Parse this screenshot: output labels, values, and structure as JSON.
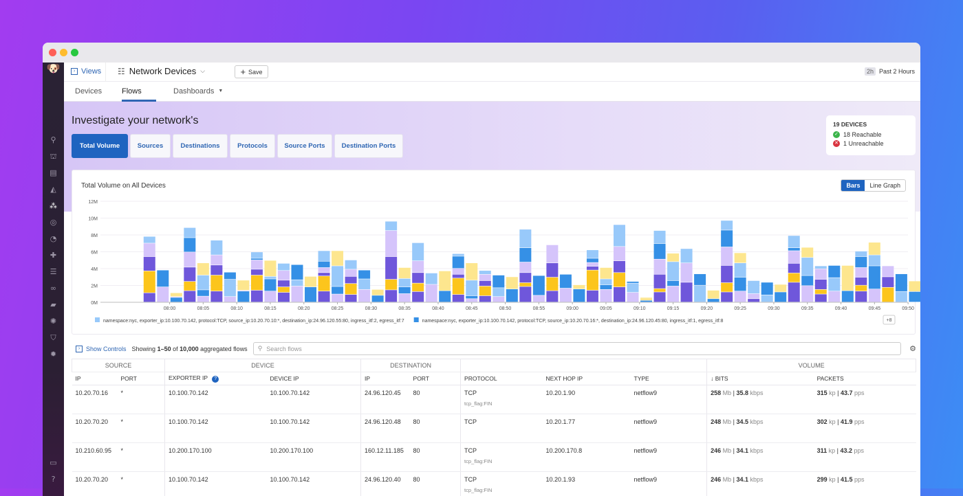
{
  "header": {
    "views_label": "Views",
    "title": "Network Devices",
    "save_label": "Save",
    "time_badge": "2h",
    "time_label": "Past 2 Hours"
  },
  "tabs": [
    {
      "label": "Devices"
    },
    {
      "label": "Flows",
      "active": true
    },
    {
      "label": "Dashboards"
    }
  ],
  "banner": {
    "title": "Investigate your network's"
  },
  "quick_tabs": [
    {
      "label": "Total Volume",
      "active": true
    },
    {
      "label": "Sources"
    },
    {
      "label": "Destinations"
    },
    {
      "label": "Protocols"
    },
    {
      "label": "Source Ports"
    },
    {
      "label": "Destination Ports"
    }
  ],
  "devices": {
    "title": "19 DEVICES",
    "reachable": "18 Reachable",
    "unreachable": "1 Unreachable"
  },
  "sidebar_icons": [
    "search-icon",
    "binoculars-icon",
    "dashboard-icon",
    "chart-icon",
    "network-icon",
    "radar-icon",
    "gauge-icon",
    "puzzle-icon",
    "filter-icon",
    "link-icon",
    "book-icon",
    "debug-icon",
    "shield-icon",
    "gear-bug-icon",
    "chat-icon",
    "help-icon"
  ],
  "chart_toggle": {
    "bars": "Bars",
    "line": "Line Graph"
  },
  "chart_data": {
    "type": "bar",
    "stacked": true,
    "title": "Total Volume on All Devices",
    "ylim": [
      0,
      12
    ],
    "yticks": [
      "0M",
      "2M",
      "4M",
      "6M",
      "8M",
      "10M",
      "12M"
    ],
    "xticks": [
      "08:00",
      "08:05",
      "08:10",
      "08:15",
      "08:20",
      "08:25",
      "08:30",
      "08:35",
      "08:40",
      "08:45",
      "08:50",
      "08:55",
      "09:00",
      "09:05",
      "09:10",
      "09:15",
      "09:20",
      "09:25",
      "09:30",
      "09:35",
      "09:40",
      "09:45",
      "09:50",
      "09:55"
    ],
    "x_start": "07:57",
    "x_step_minutes": 2,
    "grid": true,
    "legend": "bottom",
    "colors": {
      "P": "#6f57db",
      "L": "#d5c4fb",
      "Y": "#fcc51c",
      "PY": "#fde68e",
      "B": "#3590e6",
      "LB": "#98c9fa"
    },
    "legend_entries": [
      {
        "color": "#98c9fa",
        "label": "namespace:nyc, exporter_ip:10.100.70.142, protocol:TCP, source_ip:10.20.70.10:*, destination_ip:24.96.120.55:80, ingress_itf:2, egress_itf:7"
      },
      {
        "color": "#3590e6",
        "label": "namespace:nyc, exporter_ip:10.100.70.142, protocol:TCP, source_ip:10.20.70.16:*, destination_ip:24.96.120.45:80, ingress_itf:1, egress_itf:8"
      }
    ],
    "legend_more": "+8",
    "bars": [
      [
        [
          "P",
          1.1
        ],
        [
          "Y",
          2.6
        ],
        [
          "P",
          1.7
        ],
        [
          "L",
          1.6
        ],
        [
          "LB",
          0.8
        ]
      ],
      [
        [
          "L",
          1.8
        ],
        [
          "B",
          2.0
        ]
      ],
      [
        [
          "B",
          0.55
        ],
        [
          "L",
          0.1
        ],
        [
          "PY",
          0.45
        ]
      ],
      [
        [
          "P",
          1.35
        ],
        [
          "Y",
          1.1
        ],
        [
          "P",
          1.7
        ],
        [
          "L",
          1.8
        ],
        [
          "B",
          1.7
        ],
        [
          "LB",
          1.2
        ]
      ],
      [
        [
          "L",
          0.7
        ],
        [
          "B",
          0.75
        ],
        [
          "LB",
          1.75
        ],
        [
          "PY",
          1.45
        ]
      ],
      [
        [
          "P",
          1.3
        ],
        [
          "Y",
          1.9
        ],
        [
          "P",
          1.2
        ],
        [
          "L",
          1.2
        ],
        [
          "LB",
          1.75
        ]
      ],
      [
        [
          "L",
          0.65
        ],
        [
          "LB",
          2.05
        ],
        [
          "B",
          0.85
        ]
      ],
      [
        [
          "B",
          1.3
        ],
        [
          "L",
          0.1
        ],
        [
          "PY",
          1.2
        ]
      ],
      [
        [
          "P",
          1.4
        ],
        [
          "Y",
          1.8
        ],
        [
          "P",
          0.7
        ],
        [
          "L",
          1.1
        ],
        [
          "B",
          0.2
        ],
        [
          "LB",
          0.75
        ]
      ],
      [
        [
          "L",
          1.3
        ],
        [
          "B",
          1.45
        ],
        [
          "LB",
          0.3
        ],
        [
          "PY",
          1.9
        ]
      ],
      [
        [
          "P",
          1.15
        ],
        [
          "Y",
          0.65
        ],
        [
          "P",
          0.8
        ],
        [
          "L",
          1.15
        ],
        [
          "LB",
          0.85
        ]
      ],
      [
        [
          "L",
          1.9
        ],
        [
          "LB",
          0.75
        ],
        [
          "B",
          1.8
        ]
      ],
      [
        [
          "B",
          1.8
        ],
        [
          "PY",
          1.25
        ]
      ],
      [
        [
          "P",
          1.3
        ],
        [
          "Y",
          1.8
        ],
        [
          "P",
          0.4
        ],
        [
          "L",
          0.6
        ],
        [
          "B",
          0.75
        ],
        [
          "LB",
          1.25
        ]
      ],
      [
        [
          "L",
          0.95
        ],
        [
          "B",
          0.9
        ],
        [
          "LB",
          2.45
        ],
        [
          "PY",
          1.8
        ]
      ],
      [
        [
          "P",
          0.9
        ],
        [
          "Y",
          1.3
        ],
        [
          "P",
          0.85
        ],
        [
          "L",
          0.85
        ],
        [
          "LB",
          1.1
        ]
      ],
      [
        [
          "L",
          1.5
        ],
        [
          "LB",
          1.25
        ],
        [
          "B",
          1.05
        ]
      ],
      [
        [
          "B",
          0.8
        ],
        [
          "PY",
          0.7
        ]
      ],
      [
        [
          "P",
          1.45
        ],
        [
          "Y",
          1.25
        ],
        [
          "P",
          2.7
        ],
        [
          "L",
          3.1
        ],
        [
          "LB",
          1.1
        ]
      ],
      [
        [
          "L",
          1.0
        ],
        [
          "B",
          0.8
        ],
        [
          "LB",
          1.0
        ],
        [
          "PY",
          1.3
        ]
      ],
      [
        [
          "P",
          1.25
        ],
        [
          "Y",
          1.0
        ],
        [
          "P",
          1.25
        ],
        [
          "L",
          1.4
        ],
        [
          "LB",
          2.15
        ]
      ],
      [
        [
          "L",
          2.1
        ],
        [
          "LB",
          1.35
        ]
      ],
      [
        [
          "B",
          1.35
        ],
        [
          "PY",
          2.35
        ]
      ],
      [
        [
          "P",
          0.9
        ],
        [
          "Y",
          1.95
        ],
        [
          "P",
          0.45
        ],
        [
          "L",
          0.7
        ],
        [
          "B",
          1.45
        ],
        [
          "LB",
          0.3
        ]
      ],
      [
        [
          "L",
          0.4
        ],
        [
          "B",
          0.35
        ],
        [
          "LB",
          1.85
        ],
        [
          "PY",
          2.05
        ]
      ],
      [
        [
          "P",
          0.75
        ],
        [
          "Y",
          1.15
        ],
        [
          "P",
          0.65
        ],
        [
          "L",
          0.75
        ],
        [
          "LB",
          0.45
        ]
      ],
      [
        [
          "L",
          0.65
        ],
        [
          "LB",
          1.05
        ],
        [
          "B",
          1.5
        ]
      ],
      [
        [
          "B",
          1.55
        ],
        [
          "PY",
          1.45
        ]
      ],
      [
        [
          "P",
          1.85
        ],
        [
          "Y",
          0.45
        ],
        [
          "P",
          1.2
        ],
        [
          "L",
          1.25
        ],
        [
          "B",
          1.7
        ],
        [
          "LB",
          2.2
        ]
      ],
      [
        [
          "L",
          0.8
        ],
        [
          "B",
          2.35
        ]
      ],
      [
        [
          "P",
          1.35
        ],
        [
          "Y",
          1.6
        ],
        [
          "P",
          1.7
        ],
        [
          "L",
          2.15
        ]
      ],
      [
        [
          "L",
          1.65
        ],
        [
          "B",
          1.65
        ]
      ],
      [
        [
          "B",
          1.55
        ],
        [
          "PY",
          0.5
        ]
      ],
      [
        [
          "P",
          1.4
        ],
        [
          "Y",
          2.4
        ],
        [
          "P",
          0.45
        ],
        [
          "L",
          0.45
        ],
        [
          "B",
          0.5
        ],
        [
          "LB",
          1.0
        ]
      ],
      [
        [
          "L",
          1.5
        ],
        [
          "B",
          0.55
        ],
        [
          "LB",
          0.7
        ],
        [
          "PY",
          1.35
        ]
      ],
      [
        [
          "P",
          1.8
        ],
        [
          "Y",
          1.7
        ],
        [
          "P",
          1.4
        ],
        [
          "L",
          1.7
        ],
        [
          "LB",
          2.6
        ]
      ],
      [
        [
          "L",
          1.15
        ],
        [
          "LB",
          1.1
        ],
        [
          "B",
          0.2
        ]
      ],
      [
        [
          "B",
          0.2
        ],
        [
          "Y",
          0.1
        ],
        [
          "PY",
          0.25
        ]
      ],
      [
        [
          "P",
          1.2
        ],
        [
          "Y",
          0.4
        ],
        [
          "P",
          1.7
        ],
        [
          "L",
          1.8
        ],
        [
          "B",
          1.85
        ],
        [
          "LB",
          1.55
        ]
      ],
      [
        [
          "L",
          1.9
        ],
        [
          "B",
          0.65
        ],
        [
          "LB",
          2.25
        ],
        [
          "PY",
          1.0
        ]
      ],
      [
        [
          "P",
          2.35
        ],
        [
          "L",
          2.3
        ],
        [
          "LB",
          1.7
        ]
      ],
      [
        [
          "LB",
          2.0
        ],
        [
          "B",
          1.35
        ]
      ],
      [
        [
          "B",
          0.4
        ],
        [
          "PY",
          1.0
        ]
      ],
      [
        [
          "P",
          1.2
        ],
        [
          "Y",
          1.1
        ],
        [
          "P",
          2.05
        ],
        [
          "L",
          2.2
        ],
        [
          "B",
          2.0
        ],
        [
          "LB",
          1.15
        ]
      ],
      [
        [
          "L",
          1.3
        ],
        [
          "B",
          1.65
        ],
        [
          "LB",
          1.7
        ],
        [
          "PY",
          1.2
        ]
      ],
      [
        [
          "P",
          0.4
        ],
        [
          "L",
          0.6
        ],
        [
          "LB",
          1.55
        ]
      ],
      [
        [
          "LB",
          0.85
        ],
        [
          "B",
          1.5
        ]
      ],
      [
        [
          "B",
          1.2
        ],
        [
          "PY",
          0.9
        ]
      ],
      [
        [
          "P",
          2.35
        ],
        [
          "Y",
          1.1
        ],
        [
          "P",
          1.15
        ],
        [
          "L",
          1.5
        ],
        [
          "B",
          0.35
        ],
        [
          "LB",
          1.45
        ]
      ],
      [
        [
          "L",
          1.95
        ],
        [
          "B",
          1.2
        ],
        [
          "LB",
          2.15
        ],
        [
          "PY",
          1.2
        ]
      ],
      [
        [
          "P",
          0.95
        ],
        [
          "Y",
          0.55
        ],
        [
          "P",
          1.2
        ],
        [
          "L",
          1.25
        ],
        [
          "LB",
          0.35
        ]
      ],
      [
        [
          "L",
          1.3
        ],
        [
          "LB",
          1.6
        ],
        [
          "B",
          1.45
        ]
      ],
      [
        [
          "B",
          1.35
        ],
        [
          "PY",
          3.0
        ]
      ],
      [
        [
          "P",
          1.3
        ],
        [
          "Y",
          0.7
        ],
        [
          "P",
          0.95
        ],
        [
          "L",
          1.15
        ],
        [
          "B",
          1.3
        ],
        [
          "LB",
          0.65
        ]
      ],
      [
        [
          "L",
          1.55
        ],
        [
          "B",
          2.75
        ],
        [
          "LB",
          1.3
        ],
        [
          "PY",
          1.5
        ]
      ],
      [
        [
          "Y",
          1.75
        ],
        [
          "P",
          1.25
        ],
        [
          "L",
          1.3
        ]
      ],
      [
        [
          "LB",
          1.25
        ],
        [
          "B",
          2.1
        ]
      ],
      [
        [
          "B",
          1.25
        ],
        [
          "PY",
          1.25
        ]
      ],
      [
        [
          "P",
          2.35
        ],
        [
          "L",
          0.9
        ],
        [
          "LB",
          0.75
        ]
      ],
      [
        [
          "L",
          1.1
        ],
        [
          "LB",
          1.15
        ],
        [
          "B",
          0.2
        ]
      ]
    ]
  },
  "controls": {
    "show_controls": "Show Controls",
    "showing_prefix": "Showing ",
    "showing_range": "1–50",
    "showing_of": " of ",
    "showing_total": "10,000",
    "showing_suffix": " aggregated flows",
    "search_placeholder": "Search flows"
  },
  "table": {
    "groups": [
      "SOURCE",
      "DEVICE",
      "DESTINATION",
      "",
      "VOLUME"
    ],
    "columns": [
      "IP",
      "PORT",
      "EXPORTER IP",
      "DEVICE IP",
      "IP",
      "PORT",
      "PROTOCOL",
      "NEXT HOP IP",
      "TYPE",
      "BITS",
      "PACKETS"
    ],
    "rows": [
      {
        "src_ip": "10.20.70.16",
        "src_port": "*",
        "exporter": "10.100.70.142",
        "device": "10.100.70.142",
        "dst_ip": "24.96.120.45",
        "dst_port": "80",
        "protocol": "TCP",
        "flag": "tcp_flag:FIN",
        "next_hop": "10.20.1.90",
        "type": "netflow9",
        "bits": "258",
        "bits_u": "Mb",
        "rate": "35.8",
        "rate_u": "kbps",
        "packets": "315",
        "packets_u": "kp",
        "pps": "43.7",
        "pps_u": "pps"
      },
      {
        "src_ip": "10.20.70.20",
        "src_port": "*",
        "exporter": "10.100.70.142",
        "device": "10.100.70.142",
        "dst_ip": "24.96.120.48",
        "dst_port": "80",
        "protocol": "TCP",
        "flag": "",
        "next_hop": "10.20.1.77",
        "type": "netflow9",
        "bits": "248",
        "bits_u": "Mb",
        "rate": "34.5",
        "rate_u": "kbps",
        "packets": "302",
        "packets_u": "kp",
        "pps": "41.9",
        "pps_u": "pps"
      },
      {
        "src_ip": "10.210.60.95",
        "src_port": "*",
        "exporter": "10.200.170.100",
        "device": "10.200.170.100",
        "dst_ip": "160.12.11.185",
        "dst_port": "80",
        "protocol": "TCP",
        "flag": "tcp_flag:FIN",
        "next_hop": "10.200.170.8",
        "type": "netflow9",
        "bits": "246",
        "bits_u": "Mb",
        "rate": "34.1",
        "rate_u": "kbps",
        "packets": "311",
        "packets_u": "kp",
        "pps": "43.2",
        "pps_u": "pps"
      },
      {
        "src_ip": "10.20.70.20",
        "src_port": "*",
        "exporter": "10.100.70.142",
        "device": "10.100.70.142",
        "dst_ip": "24.96.120.40",
        "dst_port": "80",
        "protocol": "TCP",
        "flag": "tcp_flag:FIN",
        "next_hop": "10.20.1.93",
        "type": "netflow9",
        "bits": "246",
        "bits_u": "Mb",
        "rate": "34.1",
        "rate_u": "kbps",
        "packets": "299",
        "packets_u": "kp",
        "pps": "41.5",
        "pps_u": "pps"
      }
    ]
  }
}
